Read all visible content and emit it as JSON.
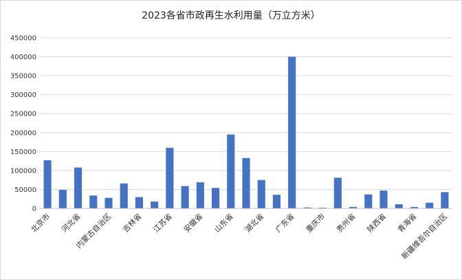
{
  "chart_data": {
    "type": "bar",
    "title": "2023各省市政再生水利用量（万立方米）",
    "xlabel": "",
    "ylabel": "",
    "ylim": [
      0,
      450000
    ],
    "yticks": [
      0,
      50000,
      100000,
      150000,
      200000,
      250000,
      300000,
      350000,
      400000,
      450000
    ],
    "grid": true,
    "legend": "none",
    "bar_color": "#4472C4",
    "categories": [
      "北京市",
      "",
      "河北省",
      "",
      "内蒙古自治区",
      "",
      "吉林省",
      "",
      "江苏省",
      "",
      "安徽省",
      "",
      "山东省",
      "",
      "湖北省",
      "",
      "广东省",
      "",
      "重庆市",
      "",
      "贵州省",
      "",
      "陕西省",
      "",
      "青海省",
      "",
      "新疆维吾尔自治区"
    ],
    "values": [
      127000,
      49000,
      108000,
      34000,
      28000,
      66000,
      30000,
      18000,
      160000,
      59000,
      69000,
      54000,
      195000,
      133000,
      75000,
      36000,
      400000,
      2500,
      2000,
      81000,
      4000,
      37000,
      47000,
      11000,
      4000,
      15000,
      43000
    ]
  }
}
